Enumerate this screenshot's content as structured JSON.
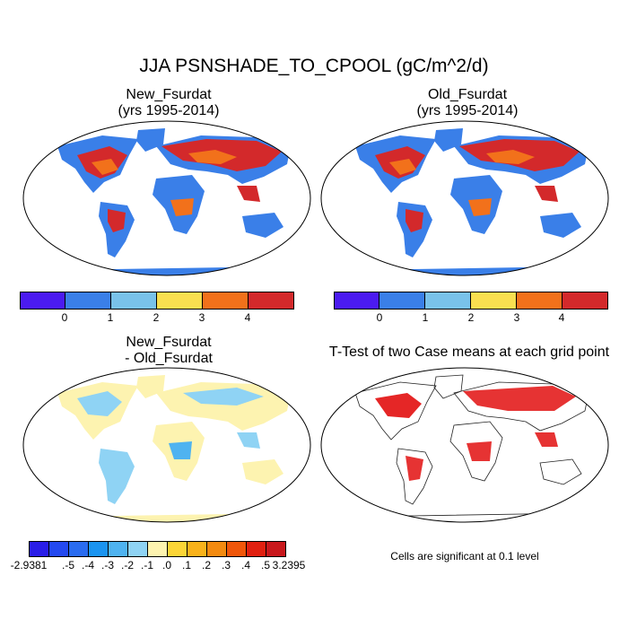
{
  "title": "JJA PSNSHADE_TO_CPOOL (gC/m^2/d)",
  "panels": {
    "top_left": {
      "line1": "New_Fsurdat",
      "line2": "(yrs 1995-2014)"
    },
    "top_right": {
      "line1": "Old_Fsurdat",
      "line2": "(yrs 1995-2014)"
    },
    "bottom_left": {
      "line1": "New_Fsurdat",
      "line2": "- Old_Fsurdat"
    },
    "bottom_right": {
      "line1": "T-Test of two Case means at each grid point"
    }
  },
  "colorbar_main": {
    "colors": [
      "#4b1bf0",
      "#3a7fe8",
      "#79c2ea",
      "#f9df50",
      "#f2711b",
      "#d3292b"
    ],
    "labels": [
      "0",
      "1",
      "2",
      "3",
      "4"
    ]
  },
  "colorbar_diff": {
    "colors": [
      "#2a1ee8",
      "#2449f0",
      "#2a6cf0",
      "#1b94f0",
      "#4fb3f0",
      "#8fd3f4",
      "#fdf3b0",
      "#fcd537",
      "#f9b21b",
      "#f38a10",
      "#f0560a",
      "#e02010",
      "#c8181c"
    ],
    "labels": [
      "-2.9381",
      ".-5",
      ".-4",
      ".-3",
      ".-2",
      ".-1",
      ".0",
      ".1",
      ".2",
      ".3",
      ".4",
      ".5",
      "3.2395"
    ]
  },
  "note": "Cells are significant at 0.1 level"
}
